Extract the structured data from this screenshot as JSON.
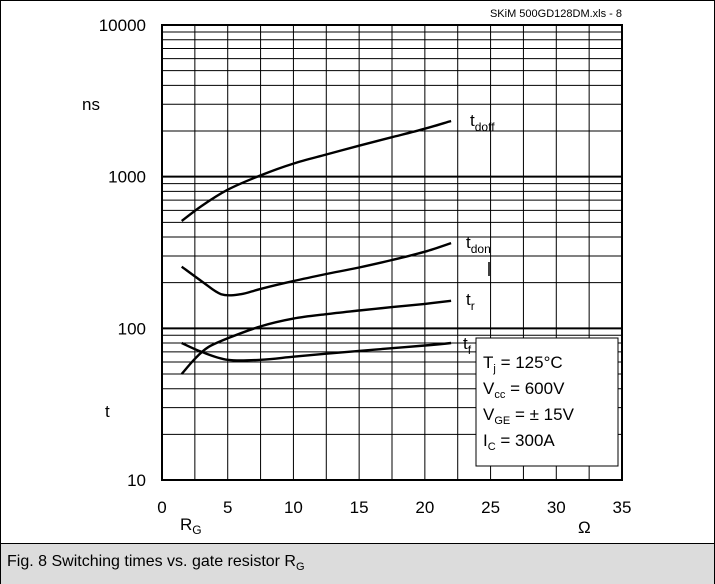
{
  "source_note": "SKiM 500GD128DM.xls - 8",
  "caption": {
    "text": "Fig. 8 Switching times vs. gate resistor R",
    "sub": "G"
  },
  "conditions": {
    "tj": {
      "main": "T",
      "sub": "j",
      "rest": " = 125°C"
    },
    "vcc": {
      "main": "V",
      "sub": "cc",
      "rest": " = 600V"
    },
    "vge": {
      "main": "V",
      "sub": "GE",
      "rest": " = ± 15V"
    },
    "ic": {
      "main": "I",
      "sub": "C",
      "rest": " = 300A"
    }
  },
  "chart_data": {
    "type": "line",
    "xlim": [
      0,
      35
    ],
    "ylim": [
      10,
      10000
    ],
    "yscale": "log",
    "grid": true,
    "x_ticks": [
      "0",
      "5",
      "10",
      "15",
      "20",
      "25",
      "30",
      "35"
    ],
    "y_ticks": [
      "10",
      "100",
      "1000",
      "10000"
    ],
    "x_ticks_values": [
      0,
      5,
      10,
      15,
      20,
      25,
      30,
      35
    ],
    "y_ticks_values": [
      10,
      100,
      1000,
      10000
    ],
    "xlabel_main": "R",
    "xlabel_sub": "G",
    "xunit": "Ω",
    "yunit": "ns",
    "ylabel": "t",
    "series": [
      {
        "name_main": "t",
        "name_sub": "doff",
        "x": [
          1.5,
          3,
          5,
          7.5,
          10,
          12.5,
          15,
          17.5,
          20,
          22
        ],
        "y": [
          510,
          640,
          820,
          1020,
          1220,
          1400,
          1600,
          1820,
          2070,
          2330
        ]
      },
      {
        "name_main": "t",
        "name_sub": "don",
        "x": [
          1.5,
          3,
          4.5,
          6,
          7.5,
          10,
          12.5,
          15,
          17.5,
          20,
          22
        ],
        "y": [
          255,
          205,
          168,
          168,
          182,
          205,
          228,
          252,
          282,
          320,
          365
        ]
      },
      {
        "name_main": "t",
        "name_sub": "r",
        "x": [
          1.5,
          2.5,
          3.5,
          5,
          7.5,
          10,
          12.5,
          15,
          17.5,
          20,
          22
        ],
        "y": [
          50,
          63,
          75,
          86,
          103,
          116,
          124,
          131,
          138,
          145,
          152
        ]
      },
      {
        "name_main": "t",
        "name_sub": "f",
        "x": [
          1.5,
          3,
          5,
          7.5,
          10,
          12.5,
          15,
          17.5,
          20,
          22
        ],
        "y": [
          80,
          70,
          62,
          62,
          65,
          68,
          71,
          74,
          77,
          80
        ]
      }
    ]
  }
}
